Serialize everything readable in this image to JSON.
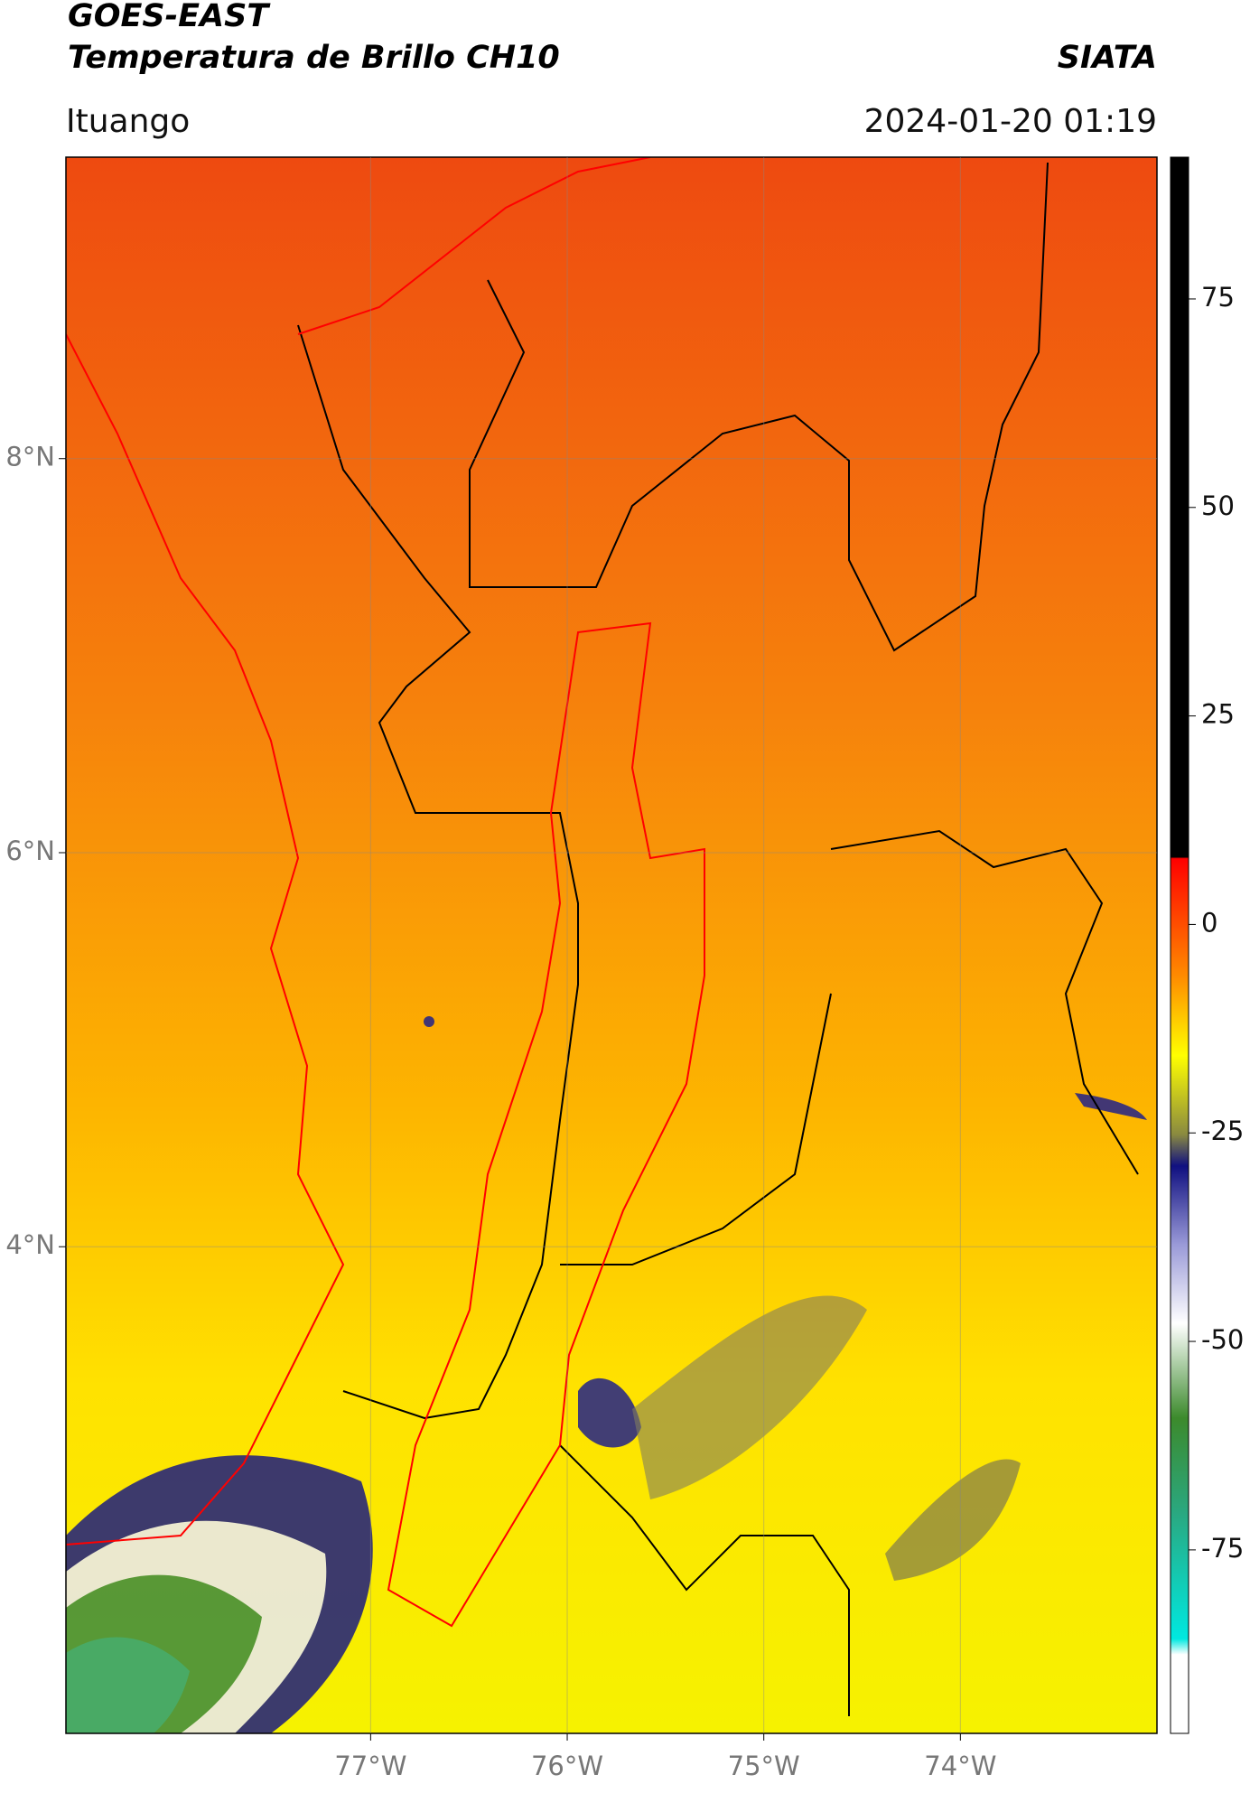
{
  "header": {
    "title_line1": "GOES-EAST",
    "title_line2": "Temperatura de Brillo CH10",
    "brand": "SIATA",
    "location": "Ituango",
    "datetime": "2024-01-20 01:19"
  },
  "map": {
    "xlim": [
      -78.55,
      -73.0
    ],
    "ylim": [
      1.53,
      9.53
    ],
    "xticks": [
      {
        "value": -77,
        "label": "77°W"
      },
      {
        "value": -76,
        "label": "76°W"
      },
      {
        "value": -75,
        "label": "75°W"
      },
      {
        "value": -74,
        "label": "74°W"
      }
    ],
    "yticks": [
      {
        "value": 4,
        "label": "4°N"
      },
      {
        "value": 6,
        "label": "6°N"
      },
      {
        "value": 8,
        "label": "8°N"
      }
    ],
    "grid": true
  },
  "colorbar": {
    "lim": [
      -97,
      92
    ],
    "ticks": [
      -75,
      -50,
      -25,
      0,
      25,
      50,
      75
    ]
  }
}
